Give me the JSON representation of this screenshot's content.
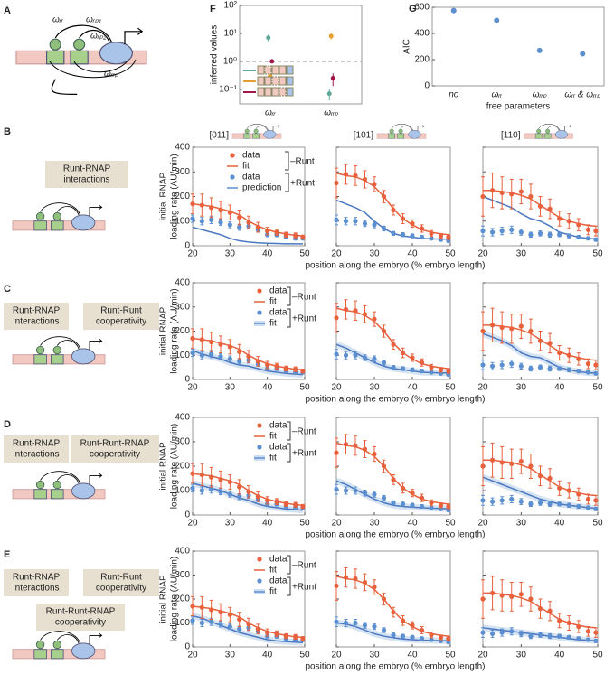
{
  "panel_labels": [
    "A",
    "B",
    "C",
    "D",
    "E",
    "F",
    "G"
  ],
  "panel_a": {
    "labels": [
      "ωᵣᵣ",
      "ωᵣₚ₁",
      "ωᵣₚ₂",
      "ωᵣᵣₚ"
    ]
  },
  "chart_data": [
    {
      "type": "scatter",
      "ylabel": "inferred values",
      "categories": [
        "ωᵣᵣ",
        "ωᵣᵣₚ"
      ],
      "log_y": true,
      "ylim": [
        0.03,
        100
      ],
      "yticks": [
        {
          "value": 0.1,
          "label": "10⁻¹"
        },
        {
          "value": 1,
          "label": "10⁰"
        },
        {
          "value": 10,
          "label": "10¹"
        },
        {
          "value": 100,
          "label": "10²"
        }
      ],
      "reference_line": 1,
      "series": [
        {
          "color": "#5fa89a",
          "values": [
            7,
            0.07
          ],
          "errors": [
            2,
            0.03
          ]
        },
        {
          "color": "#e8a030",
          "values": [
            0.3,
            8
          ],
          "errors": [
            0.05,
            2
          ]
        },
        {
          "color": "#a0174a",
          "values": [
            1,
            0.25
          ],
          "errors": [
            0.1,
            0.12
          ]
        }
      ]
    },
    {
      "type": "scatter",
      "ylabel": "AIC",
      "xlabel": "free parameters",
      "categories": [
        "no",
        "ωᵣᵣ",
        "ωᵣᵣₚ",
        "ωᵣᵣ & ωᵣᵣₚ"
      ],
      "values": [
        575,
        500,
        270,
        245
      ],
      "color": "#5b8fd0",
      "ylim": [
        0,
        600
      ],
      "yticks": [
        0,
        200,
        400,
        600
      ]
    },
    {
      "type": "line",
      "ylabel": [
        "initial RNAP",
        "loading rate (AU/min)"
      ],
      "xlabel": "position along the embryo (% embryo length)",
      "xlim": [
        20,
        50
      ],
      "xticks": [
        20,
        30,
        40,
        50
      ],
      "ylim": [
        0,
        400
      ],
      "yticks": [
        0,
        100,
        200,
        300,
        400
      ],
      "minus_color": "#e8603c",
      "plus_color": "#5b8fd0",
      "x": [
        20,
        22.5,
        25,
        27.5,
        30,
        32.5,
        35,
        37.5,
        40,
        42.5,
        45,
        47.5,
        49.5
      ],
      "constructs": [
        {
          "label": "[011]",
          "data_minus": {
            "values": [
              170,
              165,
              155,
              145,
              135,
              115,
              95,
              75,
              60,
              55,
              45,
              42,
              35
            ],
            "errors": [
              40,
              45,
              40,
              35,
              30,
              30,
              25,
              20,
              15,
              12,
              10,
              10,
              8
            ]
          },
          "fit_minus": [
            170,
            165,
            160,
            150,
            140,
            125,
            100,
            80,
            65,
            55,
            48,
            42,
            40
          ],
          "data_plus": {
            "values": [
              110,
              100,
              105,
              95,
              85,
              75,
              80,
              65,
              45,
              45,
              35,
              30,
              30
            ],
            "errors": [
              15,
              15,
              15,
              12,
              12,
              12,
              12,
              10,
              8,
              8,
              7,
              6,
              6
            ]
          }
        },
        {
          "label": "[101]",
          "data_minus": {
            "values": [
              255,
              290,
              285,
              270,
              250,
              200,
              145,
              110,
              90,
              70,
              50,
              40,
              35
            ],
            "errors": [
              60,
              40,
              40,
              35,
              30,
              25,
              20,
              20,
              15,
              15,
              12,
              10,
              10
            ]
          },
          "fit_minus": [
            295,
            285,
            280,
            265,
            240,
            200,
            150,
            110,
            85,
            65,
            55,
            48,
            45
          ],
          "data_plus": {
            "values": [
              105,
              100,
              100,
              90,
              85,
              70,
              50,
              45,
              40,
              35,
              30,
              25,
              20
            ],
            "errors": [
              20,
              15,
              15,
              12,
              12,
              10,
              8,
              8,
              8,
              7,
              6,
              6,
              5
            ]
          }
        },
        {
          "label": "[110]",
          "data_minus": {
            "values": [
              200,
              225,
              215,
              210,
              220,
              200,
              160,
              150,
              110,
              100,
              85,
              65,
              60
            ],
            "errors": [
              80,
              70,
              65,
              60,
              50,
              50,
              40,
              40,
              30,
              30,
              25,
              20,
              20
            ]
          },
          "fit_minus": [
            225,
            225,
            220,
            215,
            205,
            190,
            165,
            140,
            115,
            100,
            90,
            82,
            80
          ],
          "data_plus": {
            "values": [
              60,
              55,
              60,
              65,
              55,
              45,
              50,
              45,
              45,
              40,
              35,
              30,
              25
            ],
            "errors": [
              20,
              15,
              15,
              15,
              12,
              10,
              10,
              10,
              8,
              8,
              7,
              6,
              6
            ]
          }
        }
      ],
      "rows": [
        {
          "boxes": [
            [
              "Runt-RNAP",
              "interactions"
            ]
          ],
          "legend": [
            "data",
            "fit",
            "–Runt",
            "data",
            "prediction",
            "+Runt"
          ],
          "fits_plus": [
            [
              75,
              65,
              55,
              45,
              30,
              20,
              15,
              12,
              10,
              9,
              8,
              8,
              8
            ],
            [
              185,
              170,
              155,
              135,
              100,
              70,
              50,
              40,
              35,
              30,
              28,
              27,
              27
            ],
            [
              200,
              185,
              170,
              155,
              130,
              110,
              100,
              80,
              55,
              45,
              35,
              30,
              28
            ]
          ]
        },
        {
          "boxes": [
            [
              "Runt-RNAP",
              "interactions"
            ],
            [
              "Runt-Runt",
              "cooperativity"
            ]
          ],
          "legend": [
            "data",
            "fit",
            "–Runt",
            "data",
            "fit",
            "+Runt"
          ],
          "fits_plus": [
            [
              120,
              105,
              95,
              85,
              70,
              60,
              55,
              45,
              35,
              30,
              25,
              22,
              20
            ],
            [
              145,
              130,
              110,
              90,
              70,
              55,
              45,
              40,
              35,
              30,
              28,
              27,
              27
            ],
            [
              190,
              175,
              160,
              140,
              110,
              95,
              90,
              70,
              50,
              40,
              32,
              28,
              26
            ]
          ]
        },
        {
          "boxes": [
            [
              "Runt-RNAP",
              "interactions"
            ],
            [
              "Runt-Runt-RNAP",
              "cooperativity"
            ]
          ],
          "legend": [
            "data",
            "fit",
            "–Runt",
            "data",
            "fit",
            "+Runt"
          ],
          "fits_plus": [
            [
              130,
              120,
              110,
              100,
              85,
              70,
              60,
              45,
              35,
              30,
              25,
              22,
              20
            ],
            [
              140,
              125,
              105,
              85,
              65,
              50,
              40,
              35,
              32,
              30,
              28,
              27,
              26
            ],
            [
              155,
              140,
              125,
              110,
              95,
              80,
              65,
              55,
              45,
              40,
              35,
              30,
              28
            ]
          ]
        },
        {
          "boxes": [
            [
              "Runt-RNAP",
              "interactions"
            ],
            [
              "Runt-Runt",
              "cooperativity"
            ],
            [
              "Runt-Runt-RNAP",
              "cooperativity"
            ]
          ],
          "legend": [
            "data",
            "fit",
            "–Runt",
            "data",
            "fit",
            "+Runt"
          ],
          "fits_plus": [
            [
              130,
              120,
              105,
              90,
              75,
              60,
              50,
              40,
              30,
              25,
              22,
              20,
              18
            ],
            [
              100,
              95,
              85,
              70,
              55,
              45,
              38,
              33,
              30,
              28,
              27,
              26,
              25
            ],
            [
              80,
              75,
              70,
              65,
              60,
              55,
              50,
              45,
              40,
              35,
              30,
              28,
              26
            ]
          ]
        }
      ]
    }
  ]
}
